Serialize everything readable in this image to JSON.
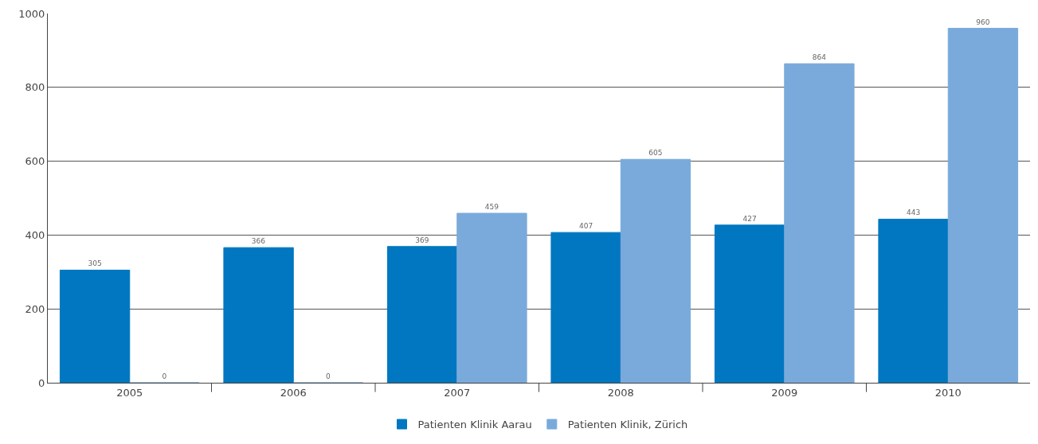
{
  "chart_data": {
    "type": "bar",
    "categories": [
      "2005",
      "2006",
      "2007",
      "2008",
      "2009",
      "2010"
    ],
    "series": [
      {
        "name": "Patienten Klinik Aarau",
        "color": "#0077c0",
        "values": [
          305,
          366,
          369,
          407,
          427,
          443
        ]
      },
      {
        "name": "Patienten Klinik, Zürich",
        "color": "#7aaadb",
        "values": [
          0,
          0,
          459,
          605,
          864,
          960
        ]
      }
    ],
    "ylim": [
      0,
      1000
    ],
    "yticks": [
      0,
      200,
      400,
      600,
      800,
      1000
    ],
    "grid": "y",
    "legend": "bottom",
    "data_labels": true
  }
}
